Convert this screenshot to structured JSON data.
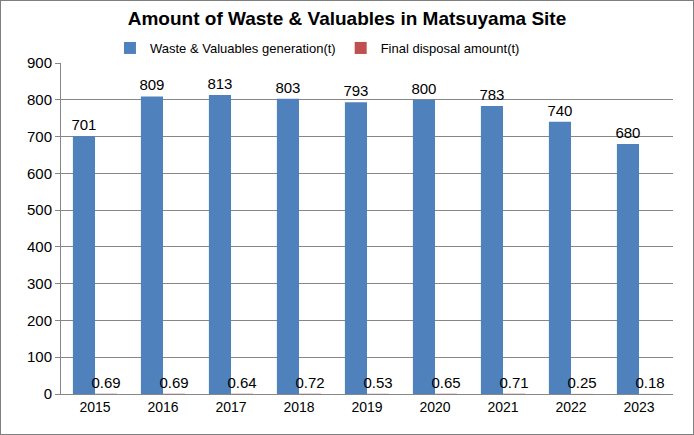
{
  "chart_data": {
    "type": "bar",
    "title": "Amount of Waste & Valuables in Matsuyama Site",
    "categories": [
      "2015",
      "2016",
      "2017",
      "2018",
      "2019",
      "2020",
      "2021",
      "2022",
      "2023"
    ],
    "series": [
      {
        "name": "Waste & Valuables generation(t)",
        "color": "#4f81bd",
        "values": [
          701,
          809,
          813,
          803,
          793,
          800,
          783,
          740,
          680
        ]
      },
      {
        "name": "Final disposal amount(t)",
        "color": "#c0504d",
        "values": [
          0.69,
          0.69,
          0.64,
          0.72,
          0.53,
          0.65,
          0.71,
          0.25,
          0.18
        ]
      }
    ],
    "ylim": [
      0,
      900
    ],
    "yticks": [
      0,
      100,
      200,
      300,
      400,
      500,
      600,
      700,
      800,
      900
    ],
    "grid": true,
    "legend": "top",
    "data_labels": true
  }
}
